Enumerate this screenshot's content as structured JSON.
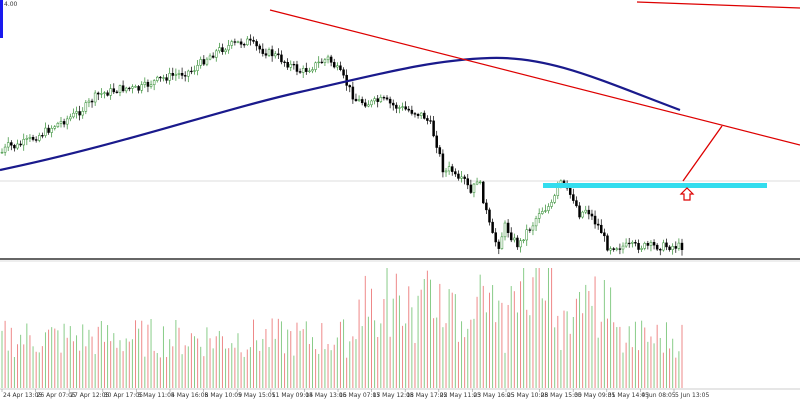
{
  "price_scale": {
    "top_value_label": "4.00"
  },
  "time_axis": {
    "labels": [
      "24 Apr 13:05",
      "26 Apr 07:05",
      "27 Apr 12:05",
      "30 Apr 17:05",
      "3 May 11:05",
      "4 May 16:05",
      "8 May 10:05",
      "9 May 15:05",
      "11 May 09:05",
      "14 May 13:05",
      "16 May 07:05",
      "17 May 12:05",
      "18 May 17:05",
      "22 May 11:05",
      "23 May 16:05",
      "25 May 10:05",
      "28 May 15:05",
      "30 May 09:05",
      "31 May 14:05",
      "4 Jun 08:05",
      "5 Jun 13:05"
    ]
  },
  "colors": {
    "bull": "#2e8b2e",
    "bear": "#000000",
    "ma": "#1a1a8c",
    "trendline": "#dd0000",
    "support": "#33ddee",
    "volume_bull": "#88cc88",
    "volume_bear": "#ee8888",
    "arrow": "#dd0000",
    "divider": "#999999"
  },
  "chart_data": {
    "type": "candlestick",
    "panels": [
      "price",
      "volume"
    ],
    "closes": [
      [
        0,
        0.76
      ],
      [
        0.01,
        0.72
      ],
      [
        0.02,
        0.73
      ],
      [
        0.04,
        0.69
      ],
      [
        0.06,
        0.65
      ],
      [
        0.08,
        0.6
      ],
      [
        0.1,
        0.56
      ],
      [
        0.12,
        0.51
      ],
      [
        0.13,
        0.47
      ],
      [
        0.14,
        0.43
      ],
      [
        0.16,
        0.41
      ],
      [
        0.18,
        0.39
      ],
      [
        0.2,
        0.4
      ],
      [
        0.22,
        0.36
      ],
      [
        0.24,
        0.33
      ],
      [
        0.26,
        0.31
      ],
      [
        0.28,
        0.29
      ],
      [
        0.3,
        0.22
      ],
      [
        0.32,
        0.17
      ],
      [
        0.34,
        0.14
      ],
      [
        0.36,
        0.12
      ],
      [
        0.38,
        0.17
      ],
      [
        0.4,
        0.2
      ],
      [
        0.42,
        0.25
      ],
      [
        0.44,
        0.3
      ],
      [
        0.46,
        0.26
      ],
      [
        0.48,
        0.22
      ],
      [
        0.5,
        0.32
      ],
      [
        0.52,
        0.46
      ],
      [
        0.54,
        0.48
      ],
      [
        0.56,
        0.46
      ],
      [
        0.58,
        0.5
      ],
      [
        0.6,
        0.52
      ],
      [
        0.62,
        0.55
      ],
      [
        0.63,
        0.6
      ],
      [
        0.64,
        0.72
      ],
      [
        0.65,
        0.88
      ],
      [
        0.66,
        0.85
      ],
      [
        0.67,
        0.93
      ],
      [
        0.68,
        0.92
      ],
      [
        0.69,
        1.0
      ],
      [
        0.7,
        0.9
      ],
      [
        0.72,
        1.23
      ],
      [
        0.73,
        1.3
      ],
      [
        0.74,
        1.18
      ],
      [
        0.75,
        1.25
      ],
      [
        0.76,
        1.3
      ],
      [
        0.77,
        1.22
      ],
      [
        0.78,
        1.18
      ],
      [
        0.79,
        1.1
      ],
      [
        0.8,
        1.08
      ],
      [
        0.81,
        1.06
      ],
      [
        0.82,
        0.92
      ],
      [
        0.83,
        0.98
      ],
      [
        0.84,
        1.02
      ],
      [
        0.85,
        1.12
      ],
      [
        0.86,
        1.08
      ],
      [
        0.87,
        1.15
      ],
      [
        0.88,
        1.2
      ],
      [
        0.89,
        1.3
      ]
    ],
    "moving_average": "plotted",
    "trendlines": 2,
    "support_zone": "plotted",
    "projected_path": "plotted"
  }
}
